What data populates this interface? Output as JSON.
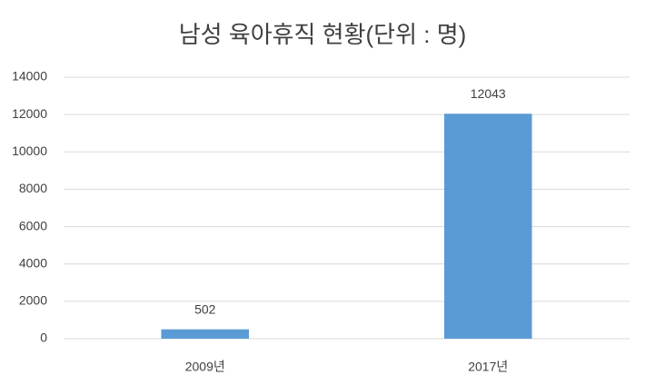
{
  "chart_data": {
    "type": "bar",
    "title": "남성 육아휴직 현황(단위 : 명)",
    "categories": [
      "2009년",
      "2017년"
    ],
    "values": [
      502,
      12043
    ],
    "color": "#5b9bd5",
    "ylim": [
      0,
      14000
    ],
    "yticks": [
      0,
      2000,
      4000,
      6000,
      8000,
      10000,
      12000,
      14000
    ],
    "grid": true
  }
}
